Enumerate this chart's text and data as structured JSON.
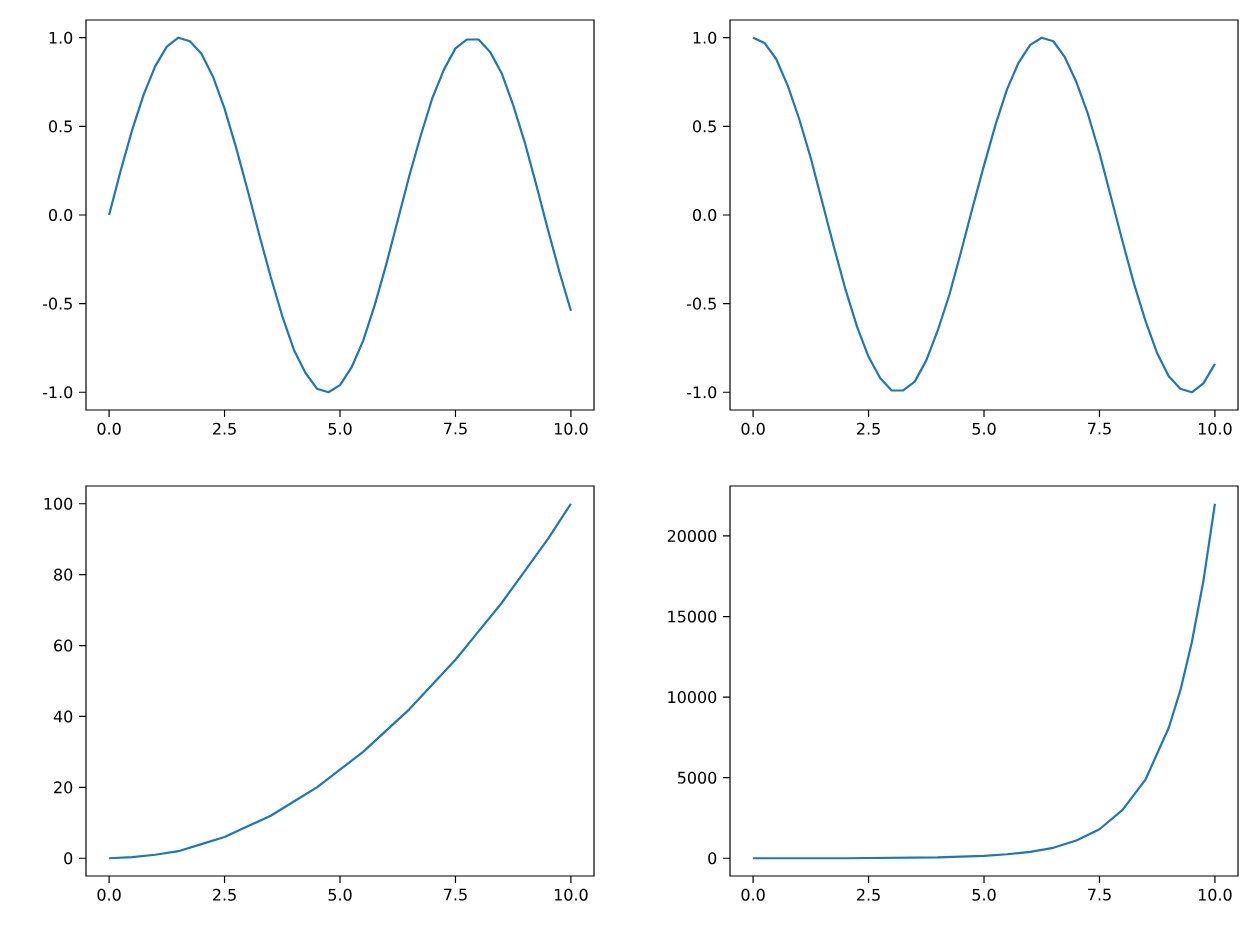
{
  "chart_data": [
    {
      "type": "line",
      "color": "#1f77b4",
      "x": [
        0,
        0.25,
        0.5,
        0.75,
        1,
        1.25,
        1.5,
        1.75,
        2,
        2.25,
        2.5,
        2.75,
        3,
        3.25,
        3.5,
        3.75,
        4,
        4.25,
        4.5,
        4.75,
        5,
        5.25,
        5.5,
        5.75,
        6,
        6.25,
        6.5,
        6.75,
        7,
        7.25,
        7.5,
        7.75,
        8,
        8.25,
        8.5,
        8.75,
        9,
        9.25,
        9.5,
        9.75,
        10
      ],
      "values": [
        0,
        0.25,
        0.48,
        0.68,
        0.84,
        0.95,
        1.0,
        0.98,
        0.91,
        0.78,
        0.6,
        0.38,
        0.14,
        -0.11,
        -0.35,
        -0.57,
        -0.76,
        -0.89,
        -0.98,
        -1.0,
        -0.96,
        -0.86,
        -0.71,
        -0.51,
        -0.28,
        -0.03,
        0.22,
        0.45,
        0.66,
        0.82,
        0.94,
        0.99,
        0.99,
        0.92,
        0.8,
        0.62,
        0.41,
        0.17,
        -0.08,
        -0.32,
        -0.54
      ],
      "xlim": [
        -0.5,
        10.5
      ],
      "ylim": [
        -1.1,
        1.1
      ],
      "xticks": [
        {
          "value": 0,
          "label": "0.0"
        },
        {
          "value": 2.5,
          "label": "2.5"
        },
        {
          "value": 5,
          "label": "5.0"
        },
        {
          "value": 7.5,
          "label": "7.5"
        },
        {
          "value": 10,
          "label": "10.0"
        }
      ],
      "yticks": [
        {
          "value": -1,
          "label": "-1.0"
        },
        {
          "value": -0.5,
          "label": "-0.5"
        },
        {
          "value": 0,
          "label": "0.0"
        },
        {
          "value": 0.5,
          "label": "0.5"
        },
        {
          "value": 1,
          "label": "1.0"
        }
      ]
    },
    {
      "type": "line",
      "color": "#1f77b4",
      "x": [
        0,
        0.25,
        0.5,
        0.75,
        1,
        1.25,
        1.5,
        1.75,
        2,
        2.25,
        2.5,
        2.75,
        3,
        3.25,
        3.5,
        3.75,
        4,
        4.25,
        4.5,
        4.75,
        5,
        5.25,
        5.5,
        5.75,
        6,
        6.25,
        6.5,
        6.75,
        7,
        7.25,
        7.5,
        7.75,
        8,
        8.25,
        8.5,
        8.75,
        9,
        9.25,
        9.5,
        9.75,
        10
      ],
      "values": [
        1.0,
        0.97,
        0.88,
        0.73,
        0.54,
        0.32,
        0.07,
        -0.18,
        -0.42,
        -0.63,
        -0.8,
        -0.92,
        -0.99,
        -0.99,
        -0.94,
        -0.82,
        -0.65,
        -0.45,
        -0.21,
        0.04,
        0.28,
        0.51,
        0.71,
        0.86,
        0.96,
        1.0,
        0.98,
        0.89,
        0.75,
        0.57,
        0.35,
        0.1,
        -0.15,
        -0.39,
        -0.6,
        -0.78,
        -0.91,
        -0.98,
        -1.0,
        -0.95,
        -0.84
      ],
      "xlim": [
        -0.5,
        10.5
      ],
      "ylim": [
        -1.1,
        1.1
      ],
      "xticks": [
        {
          "value": 0,
          "label": "0.0"
        },
        {
          "value": 2.5,
          "label": "2.5"
        },
        {
          "value": 5,
          "label": "5.0"
        },
        {
          "value": 7.5,
          "label": "7.5"
        },
        {
          "value": 10,
          "label": "10.0"
        }
      ],
      "yticks": [
        {
          "value": -1,
          "label": "-1.0"
        },
        {
          "value": -0.5,
          "label": "-0.5"
        },
        {
          "value": 0,
          "label": "0.0"
        },
        {
          "value": 0.5,
          "label": "0.5"
        },
        {
          "value": 1,
          "label": "1.0"
        }
      ]
    },
    {
      "type": "line",
      "color": "#1f77b4",
      "x": [
        0,
        0.5,
        1,
        1.5,
        2,
        2.5,
        3,
        3.5,
        4,
        4.5,
        5,
        5.5,
        6,
        6.5,
        7,
        7.5,
        8,
        8.5,
        9,
        9.5,
        10
      ],
      "values": [
        0,
        0.3,
        1,
        2,
        4,
        6,
        9,
        12,
        16,
        20,
        25,
        30,
        36,
        42,
        49,
        56,
        64,
        72,
        81,
        90,
        100
      ],
      "xlim": [
        -0.5,
        10.5
      ],
      "ylim": [
        -5,
        105
      ],
      "xticks": [
        {
          "value": 0,
          "label": "0.0"
        },
        {
          "value": 2.5,
          "label": "2.5"
        },
        {
          "value": 5,
          "label": "5.0"
        },
        {
          "value": 7.5,
          "label": "7.5"
        },
        {
          "value": 10,
          "label": "10.0"
        }
      ],
      "yticks": [
        0,
        20,
        40,
        60,
        80,
        100
      ]
    },
    {
      "type": "line",
      "color": "#1f77b4",
      "x": [
        0,
        2,
        4,
        5,
        5.5,
        6,
        6.5,
        7,
        7.5,
        8,
        8.5,
        9,
        9.25,
        9.5,
        9.75,
        10
      ],
      "values": [
        0,
        0,
        50,
        150,
        250,
        400,
        650,
        1100,
        1800,
        3000,
        4900,
        8100,
        10400,
        13400,
        17200,
        22000
      ],
      "xlim": [
        -0.5,
        10.5
      ],
      "ylim": [
        -1100,
        23100
      ],
      "xticks": [
        {
          "value": 0,
          "label": "0.0"
        },
        {
          "value": 2.5,
          "label": "2.5"
        },
        {
          "value": 5,
          "label": "5.0"
        },
        {
          "value": 7.5,
          "label": "7.5"
        },
        {
          "value": 10,
          "label": "10.0"
        }
      ],
      "yticks": [
        0,
        5000,
        10000,
        15000,
        20000
      ]
    }
  ]
}
